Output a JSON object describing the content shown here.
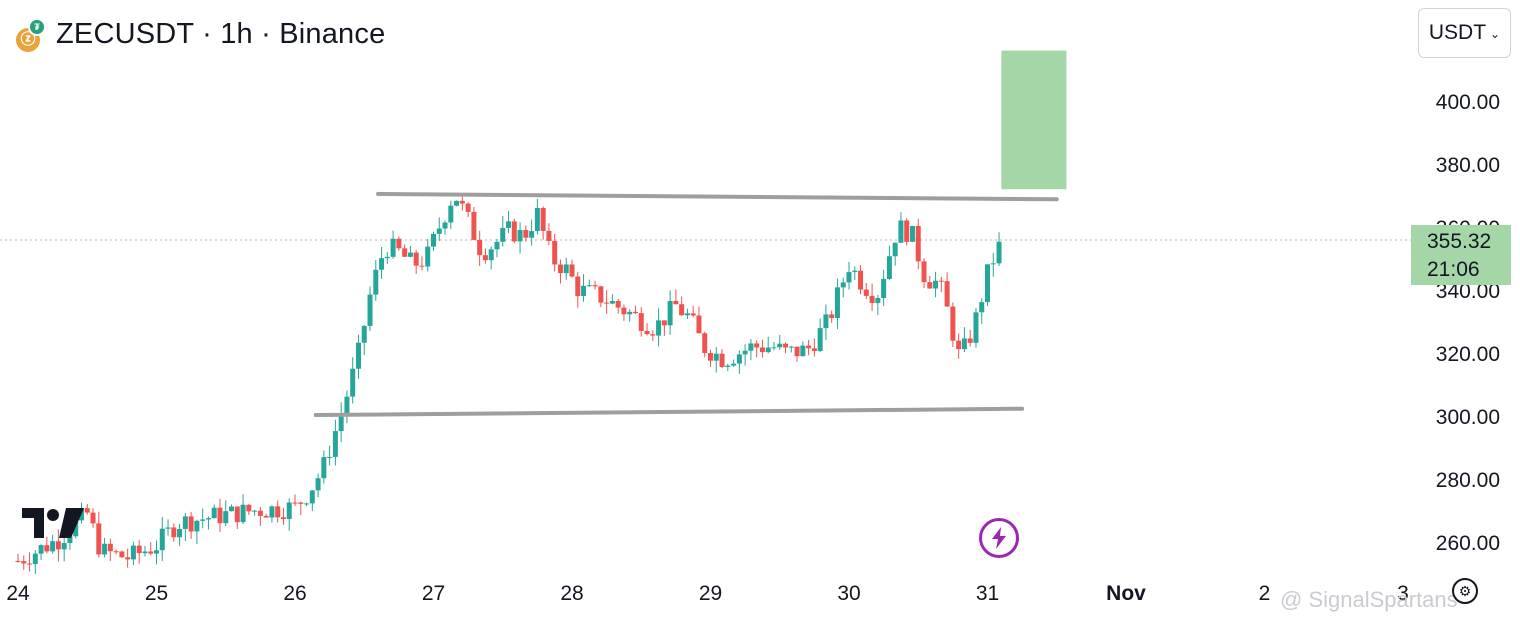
{
  "header": {
    "title": "ZECUSDT · 1h · Binance",
    "coin_icon": "zcash-coin-icon",
    "tether_icon": "tether-badge-icon"
  },
  "currency_selector": {
    "label": "USDT"
  },
  "price_badge": {
    "price": "355.32",
    "countdown": "21:06"
  },
  "watermark": {
    "text": "@ SignalSpartans"
  },
  "colors": {
    "up": "#26a69a",
    "down": "#ef5350",
    "target_zone": "#a5d6a7",
    "trendline": "#9e9e9e",
    "flash": "#9c27b0"
  },
  "chart_data": {
    "type": "candlestick",
    "x_tick_labels": [
      "24",
      "25",
      "26",
      "27",
      "28",
      "29",
      "30",
      "31",
      "Nov",
      "2",
      "3"
    ],
    "y_tick_labels": [
      "260.00",
      "280.00",
      "300.00",
      "320.00",
      "340.00",
      "360.00",
      "380.00",
      "400.00"
    ],
    "ylim": [
      246,
      414
    ],
    "xlim_days": [
      24,
      34
    ],
    "grid": false,
    "last_price": 355.32,
    "channel_upper": {
      "from": [
        26.6,
        370.5
      ],
      "to": [
        31.5,
        368.8
      ]
    },
    "channel_lower": {
      "from": [
        26.15,
        300.3
      ],
      "to": [
        31.25,
        302.3
      ]
    },
    "target_zone": {
      "x_range": [
        31.1,
        31.57
      ],
      "price_range": [
        372,
        416
      ]
    },
    "close_path": [
      [
        24.0,
        254
      ],
      [
        24.3,
        261
      ],
      [
        24.5,
        269
      ],
      [
        24.6,
        257
      ],
      [
        24.8,
        255
      ],
      [
        25.0,
        259
      ],
      [
        25.15,
        266
      ],
      [
        25.4,
        268
      ],
      [
        25.7,
        270
      ],
      [
        26.0,
        271
      ],
      [
        26.1,
        276
      ],
      [
        26.2,
        283
      ],
      [
        26.35,
        303
      ],
      [
        26.45,
        318
      ],
      [
        26.55,
        340
      ],
      [
        26.65,
        354
      ],
      [
        26.75,
        352
      ],
      [
        26.85,
        348
      ],
      [
        26.95,
        350
      ],
      [
        27.05,
        361
      ],
      [
        27.15,
        371
      ],
      [
        27.25,
        362
      ],
      [
        27.35,
        352
      ],
      [
        27.45,
        355
      ],
      [
        27.55,
        359
      ],
      [
        27.65,
        357
      ],
      [
        27.75,
        364
      ],
      [
        27.85,
        350
      ],
      [
        27.95,
        347
      ],
      [
        28.05,
        340
      ],
      [
        28.2,
        338
      ],
      [
        28.4,
        333
      ],
      [
        28.6,
        328
      ],
      [
        28.75,
        335
      ],
      [
        28.85,
        331
      ],
      [
        28.95,
        322
      ],
      [
        29.1,
        318
      ],
      [
        29.3,
        322
      ],
      [
        29.45,
        322
      ],
      [
        29.55,
        320
      ],
      [
        29.7,
        321
      ],
      [
        29.85,
        330
      ],
      [
        30.0,
        348
      ],
      [
        30.1,
        342
      ],
      [
        30.2,
        338
      ],
      [
        30.35,
        360
      ],
      [
        30.45,
        358
      ],
      [
        30.55,
        344
      ],
      [
        30.65,
        342
      ],
      [
        30.7,
        335
      ],
      [
        30.8,
        318
      ],
      [
        30.9,
        328
      ],
      [
        31.0,
        345
      ],
      [
        31.07,
        353
      ],
      [
        31.12,
        355.32
      ]
    ]
  }
}
